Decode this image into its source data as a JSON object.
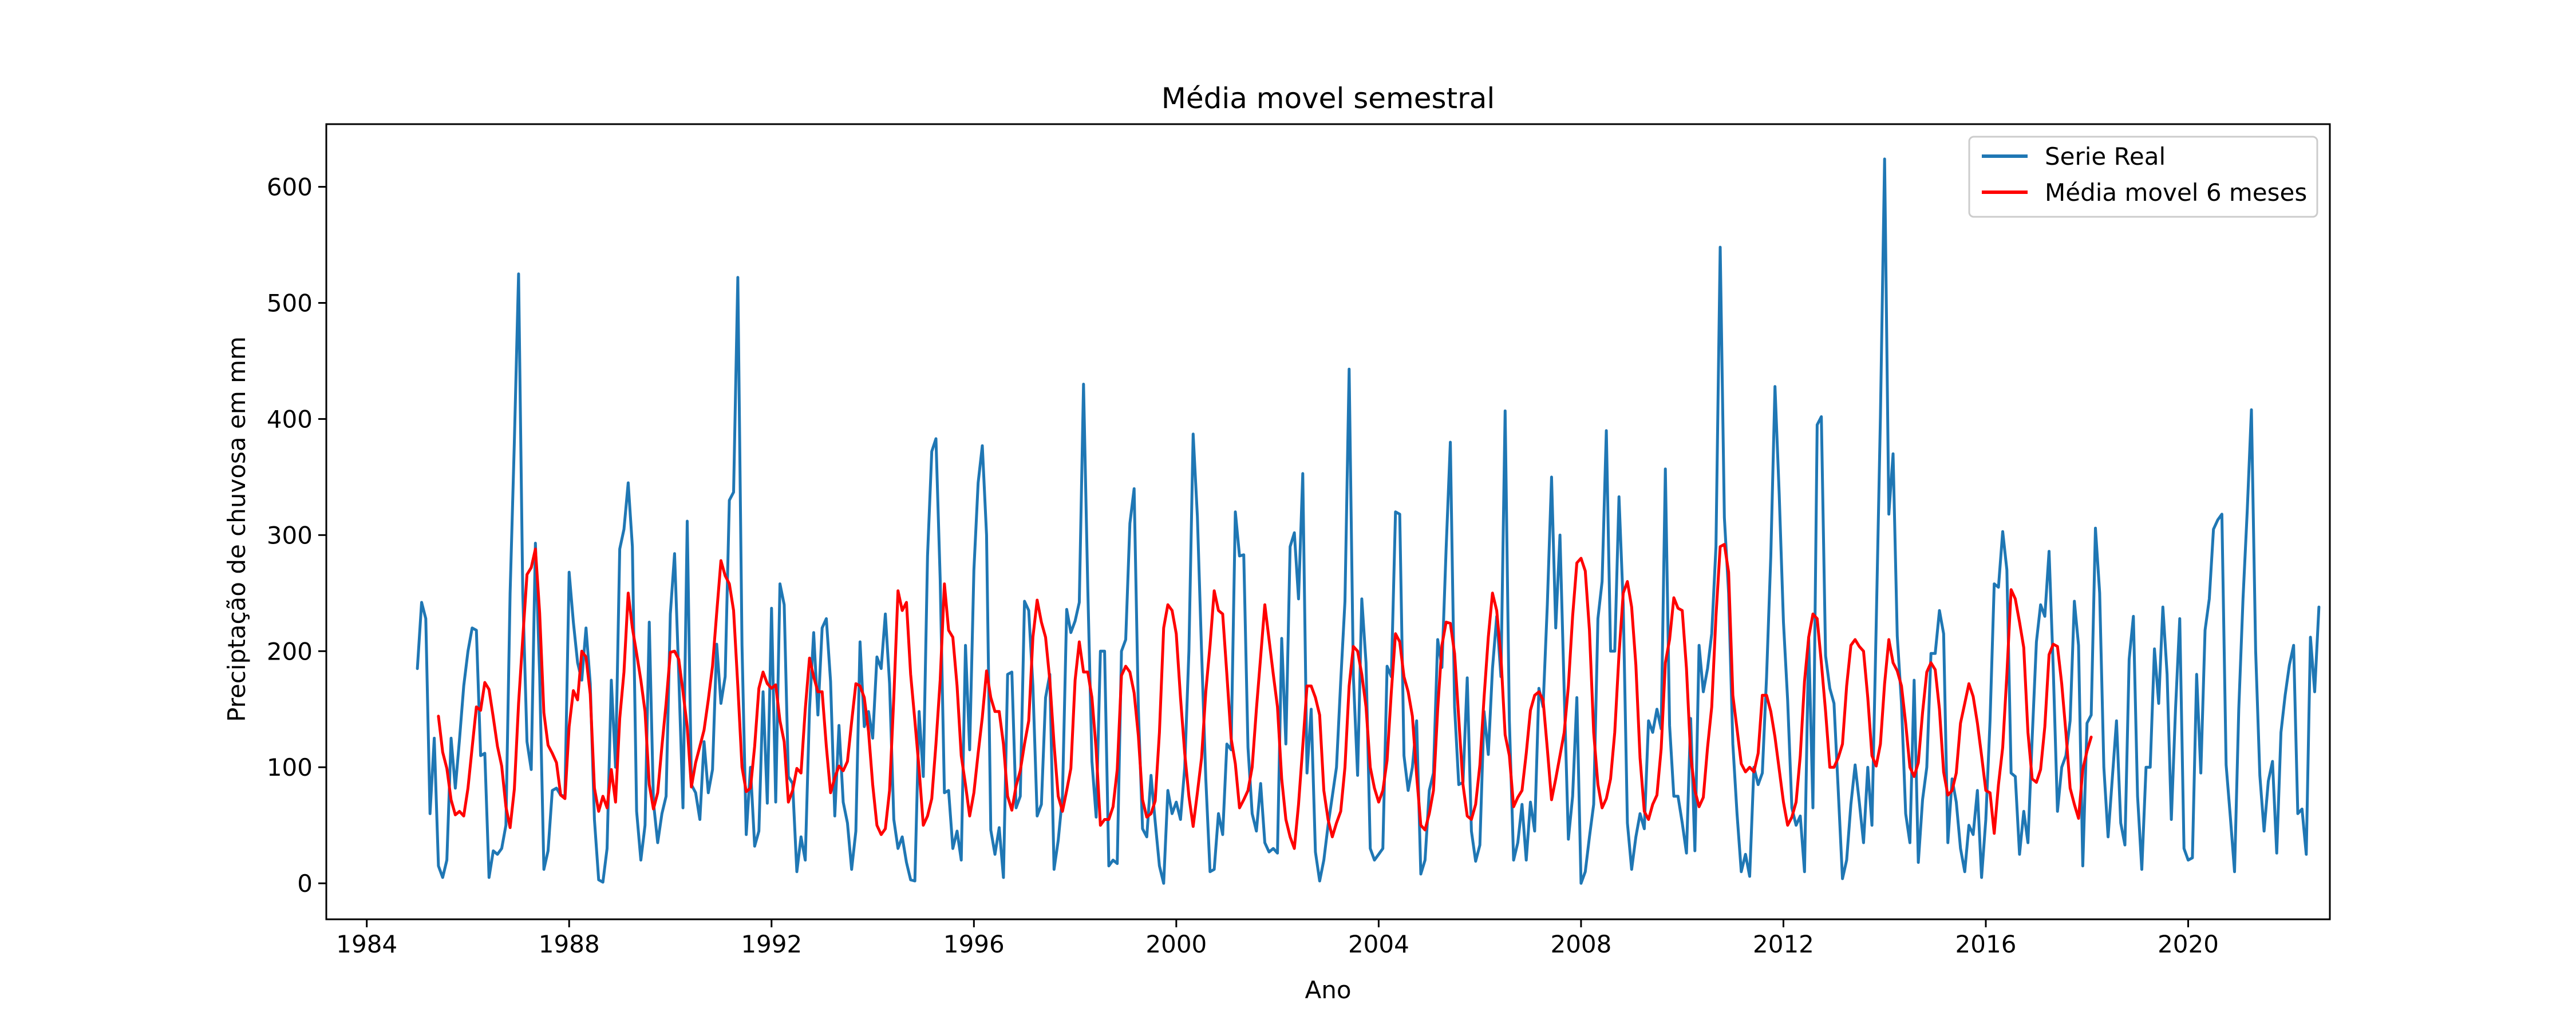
{
  "chart_data": {
    "type": "line",
    "title": "Média movel semestral",
    "xlabel": "Ano",
    "ylabel": "Preciptação de chuvosa em mm",
    "xlim": [
      1983.2,
      2022.8
    ],
    "ylim": [
      -31,
      654
    ],
    "xticks": [
      1984,
      1988,
      1992,
      1996,
      2000,
      2004,
      2008,
      2012,
      2016,
      2020
    ],
    "xtick_labels": [
      "1984",
      "1988",
      "1992",
      "1996",
      "2000",
      "2004",
      "2008",
      "2012",
      "2016",
      "2020"
    ],
    "yticks": [
      0,
      100,
      200,
      300,
      400,
      500,
      600
    ],
    "ytick_labels": [
      "0",
      "100",
      "200",
      "300",
      "400",
      "500",
      "600"
    ],
    "grid": false,
    "legend": "top-right",
    "x_start": 1985.0,
    "x_step_months": 1,
    "series": [
      {
        "name": "Serie Real",
        "color": "#1f77b4",
        "values": [
          185,
          242,
          228,
          60,
          125,
          15,
          5,
          20,
          125,
          82,
          124,
          170,
          200,
          220,
          218,
          110,
          112,
          5,
          28,
          25,
          30,
          50,
          250,
          380,
          525,
          250,
          122,
          98,
          293,
          180,
          12,
          28,
          80,
          82,
          76,
          75,
          268,
          225,
          190,
          175,
          220,
          172,
          55,
          3,
          1,
          30,
          175,
          100,
          288,
          305,
          345,
          290,
          62,
          20,
          50,
          225,
          70,
          35,
          60,
          75,
          232,
          284,
          180,
          65,
          312,
          85,
          78,
          55,
          122,
          78,
          98,
          206,
          155,
          178,
          330,
          337,
          522,
          205,
          42,
          100,
          32,
          45,
          165,
          69,
          237,
          70,
          258,
          240,
          92,
          86,
          10,
          40,
          20,
          150,
          216,
          145,
          220,
          228,
          174,
          58,
          136,
          70,
          52,
          12,
          45,
          208,
          135,
          148,
          125,
          195,
          185,
          232,
          172,
          55,
          30,
          40,
          18,
          3,
          2,
          148,
          92,
          282,
          372,
          383,
          262,
          78,
          80,
          30,
          45,
          20,
          205,
          115,
          270,
          345,
          377,
          300,
          46,
          25,
          48,
          5,
          180,
          182,
          65,
          75,
          243,
          235,
          170,
          58,
          68,
          160,
          180,
          12,
          37,
          75,
          236,
          216,
          226,
          242,
          430,
          255,
          105,
          57,
          200,
          200,
          15,
          20,
          17,
          200,
          210,
          310,
          340,
          150,
          47,
          40,
          93,
          53,
          15,
          0,
          80,
          60,
          70,
          55,
          100,
          200,
          387,
          316,
          200,
          90,
          10,
          12,
          60,
          42,
          120,
          115,
          320,
          282,
          283,
          117,
          60,
          45,
          86,
          35,
          27,
          30,
          26,
          211,
          120,
          290,
          302,
          245,
          353,
          95,
          150,
          27,
          2,
          20,
          50,
          75,
          100,
          174,
          243,
          443,
          178,
          93,
          245,
          190,
          30,
          20,
          25,
          30,
          187,
          178,
          320,
          318,
          110,
          80,
          100,
          140,
          8,
          20,
          80,
          95,
          210,
          186,
          288,
          380,
          152,
          85,
          87,
          177,
          45,
          19,
          33,
          148,
          111,
          185,
          230,
          178,
          407,
          140,
          20,
          35,
          68,
          20,
          70,
          45,
          168,
          152,
          240,
          350,
          220,
          300,
          165,
          38,
          75,
          160,
          0,
          10,
          40,
          68,
          228,
          260,
          390,
          200,
          200,
          333,
          240,
          52,
          12,
          40,
          60,
          47,
          140,
          130,
          150,
          133,
          357,
          136,
          75,
          75,
          52,
          26,
          142,
          28,
          205,
          165,
          185,
          215,
          290,
          548,
          315,
          250,
          120,
          60,
          10,
          25,
          6,
          100,
          85,
          95,
          178,
          282,
          428,
          335,
          225,
          158,
          65,
          50,
          58,
          10,
          212,
          65,
          395,
          402,
          196,
          168,
          155,
          80,
          4,
          20,
          68,
          102,
          70,
          35,
          100,
          50,
          222,
          402,
          624,
          318,
          370,
          213,
          155,
          60,
          35,
          175,
          18,
          72,
          100,
          198,
          198,
          235,
          215,
          35,
          90,
          70,
          30,
          10,
          50,
          42,
          80,
          5,
          55,
          140,
          258,
          255,
          303,
          270,
          95,
          92,
          25,
          62,
          35,
          125,
          208,
          240,
          230,
          286,
          185,
          62,
          100,
          110,
          140,
          243,
          205,
          15,
          138,
          145,
          306,
          250,
          100,
          40,
          90,
          140,
          52,
          33,
          193,
          230,
          75,
          12,
          100,
          100,
          202,
          155,
          238,
          180,
          55,
          150,
          228,
          30,
          20,
          22,
          180,
          95,
          218,
          245,
          305,
          313,
          318,
          102,
          57,
          10,
          150,
          245,
          320,
          408,
          200,
          93,
          45,
          88,
          105,
          26,
          130,
          162,
          188,
          205,
          60,
          64,
          25,
          212,
          165,
          238
        ]
      },
      {
        "name": "Média movel 6 meses",
        "color": "#ff0000",
        "values": [
          null,
          null,
          null,
          null,
          null,
          144,
          113,
          99,
          72,
          59,
          62,
          58,
          82,
          117,
          152,
          149,
          173,
          167,
          143,
          118,
          101,
          66,
          48,
          81,
          155,
          211,
          266,
          272,
          288,
          233,
          147,
          119,
          112,
          104,
          76,
          73,
          135,
          166,
          158,
          200,
          195,
          163,
          82,
          62,
          75,
          65,
          98,
          70,
          142,
          182,
          250,
          220,
          198,
          175,
          148,
          85,
          64,
          78,
          118,
          155,
          199,
          200,
          193,
          165,
          135,
          83,
          104,
          118,
          132,
          158,
          187,
          233,
          278,
          265,
          258,
          235,
          170,
          100,
          79,
          82,
          118,
          168,
          182,
          172,
          168,
          171,
          140,
          122,
          70,
          80,
          99,
          95,
          150,
          194,
          178,
          165,
          165,
          118,
          78,
          91,
          101,
          97,
          105,
          139,
          172,
          170,
          160,
          131,
          85,
          50,
          42,
          47,
          80,
          160,
          252,
          235,
          242,
          180,
          140,
          98,
          50,
          58,
          73,
          120,
          175,
          258,
          218,
          212,
          170,
          110,
          85,
          58,
          78,
          112,
          143,
          183,
          160,
          148,
          148,
          120,
          75,
          63,
          84,
          97,
          120,
          140,
          212,
          244,
          225,
          212,
          175,
          120,
          75,
          62,
          80,
          99,
          175,
          208,
          182,
          182,
          160,
          115,
          50,
          55,
          55,
          66,
          98,
          179,
          187,
          182,
          164,
          127,
          72,
          57,
          60,
          71,
          130,
          220,
          240,
          235,
          215,
          160,
          112,
          75,
          49,
          78,
          108,
          165,
          205,
          252,
          235,
          232,
          180,
          125,
          103,
          65,
          72,
          80,
          100,
          150,
          195,
          240,
          210,
          180,
          152,
          90,
          55,
          40,
          30,
          68,
          118,
          170,
          170,
          160,
          145,
          80,
          55,
          40,
          52,
          62,
          100,
          170,
          204,
          200,
          180,
          152,
          100,
          82,
          70,
          80,
          106,
          165,
          215,
          208,
          178,
          165,
          144,
          93,
          50,
          46,
          60,
          80,
          150,
          205,
          225,
          224,
          198,
          142,
          85,
          58,
          55,
          68,
          102,
          160,
          212,
          250,
          235,
          195,
          128,
          110,
          66,
          74,
          80,
          112,
          149,
          162,
          165,
          158,
          116,
          72,
          90,
          110,
          130,
          170,
          230,
          276,
          280,
          269,
          218,
          130,
          85,
          65,
          73,
          90,
          130,
          197,
          250,
          260,
          238,
          188,
          108,
          62,
          55,
          68,
          76,
          116,
          190,
          210,
          246,
          237,
          235,
          185,
          110,
          80,
          66,
          74,
          117,
          152,
          230,
          290,
          292,
          268,
          162,
          133,
          103,
          96,
          100,
          96,
          112,
          162,
          162,
          148,
          126,
          98,
          70,
          50,
          57,
          70,
          110,
          174,
          212,
          232,
          228,
          190,
          148,
          100,
          100,
          108,
          120,
          170,
          205,
          210,
          204,
          200,
          160,
          110,
          101,
          120,
          172,
          210,
          190,
          183,
          170,
          138,
          100,
          92,
          104,
          147,
          182,
          190,
          184,
          150,
          96,
          76,
          80,
          95,
          138,
          155,
          172,
          161,
          138,
          110,
          80,
          78,
          43,
          85,
          117,
          180,
          253,
          245,
          225,
          203,
          130,
          90,
          87,
          98,
          135,
          197,
          206,
          204,
          172,
          130,
          82,
          68,
          56,
          98,
          114,
          126
        ]
      }
    ]
  }
}
